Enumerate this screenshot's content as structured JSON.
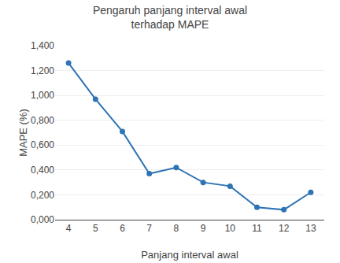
{
  "chart_data": {
    "type": "line",
    "title": "Pengaruh panjang interval awal\nterhadap MAPE",
    "x_label": "Panjang interval awal",
    "y_label": "MAPE (%)",
    "x": [
      4,
      5,
      6,
      7,
      8,
      9,
      10,
      11,
      12,
      13
    ],
    "values": [
      1.26,
      0.97,
      0.71,
      0.37,
      0.42,
      0.3,
      0.27,
      0.1,
      0.08,
      0.22
    ],
    "color": "#2E74B5",
    "marker": "circle",
    "xlim": [
      3.5,
      13.5
    ],
    "xticks": [
      4,
      5,
      6,
      7,
      8,
      9,
      10,
      11,
      12,
      13
    ],
    "ylim": [
      0.0,
      1.4
    ],
    "yticks": [
      {
        "value": 0.0,
        "label": "0,000"
      },
      {
        "value": 0.2,
        "label": "0,200"
      },
      {
        "value": 0.4,
        "label": "0,400"
      },
      {
        "value": 0.6,
        "label": "0,600"
      },
      {
        "value": 0.8,
        "label": "0,800"
      },
      {
        "value": 1.0,
        "label": "1,000"
      },
      {
        "value": 1.2,
        "label": "1,200"
      },
      {
        "value": 1.4,
        "label": "1,400"
      }
    ],
    "grid": "y"
  }
}
